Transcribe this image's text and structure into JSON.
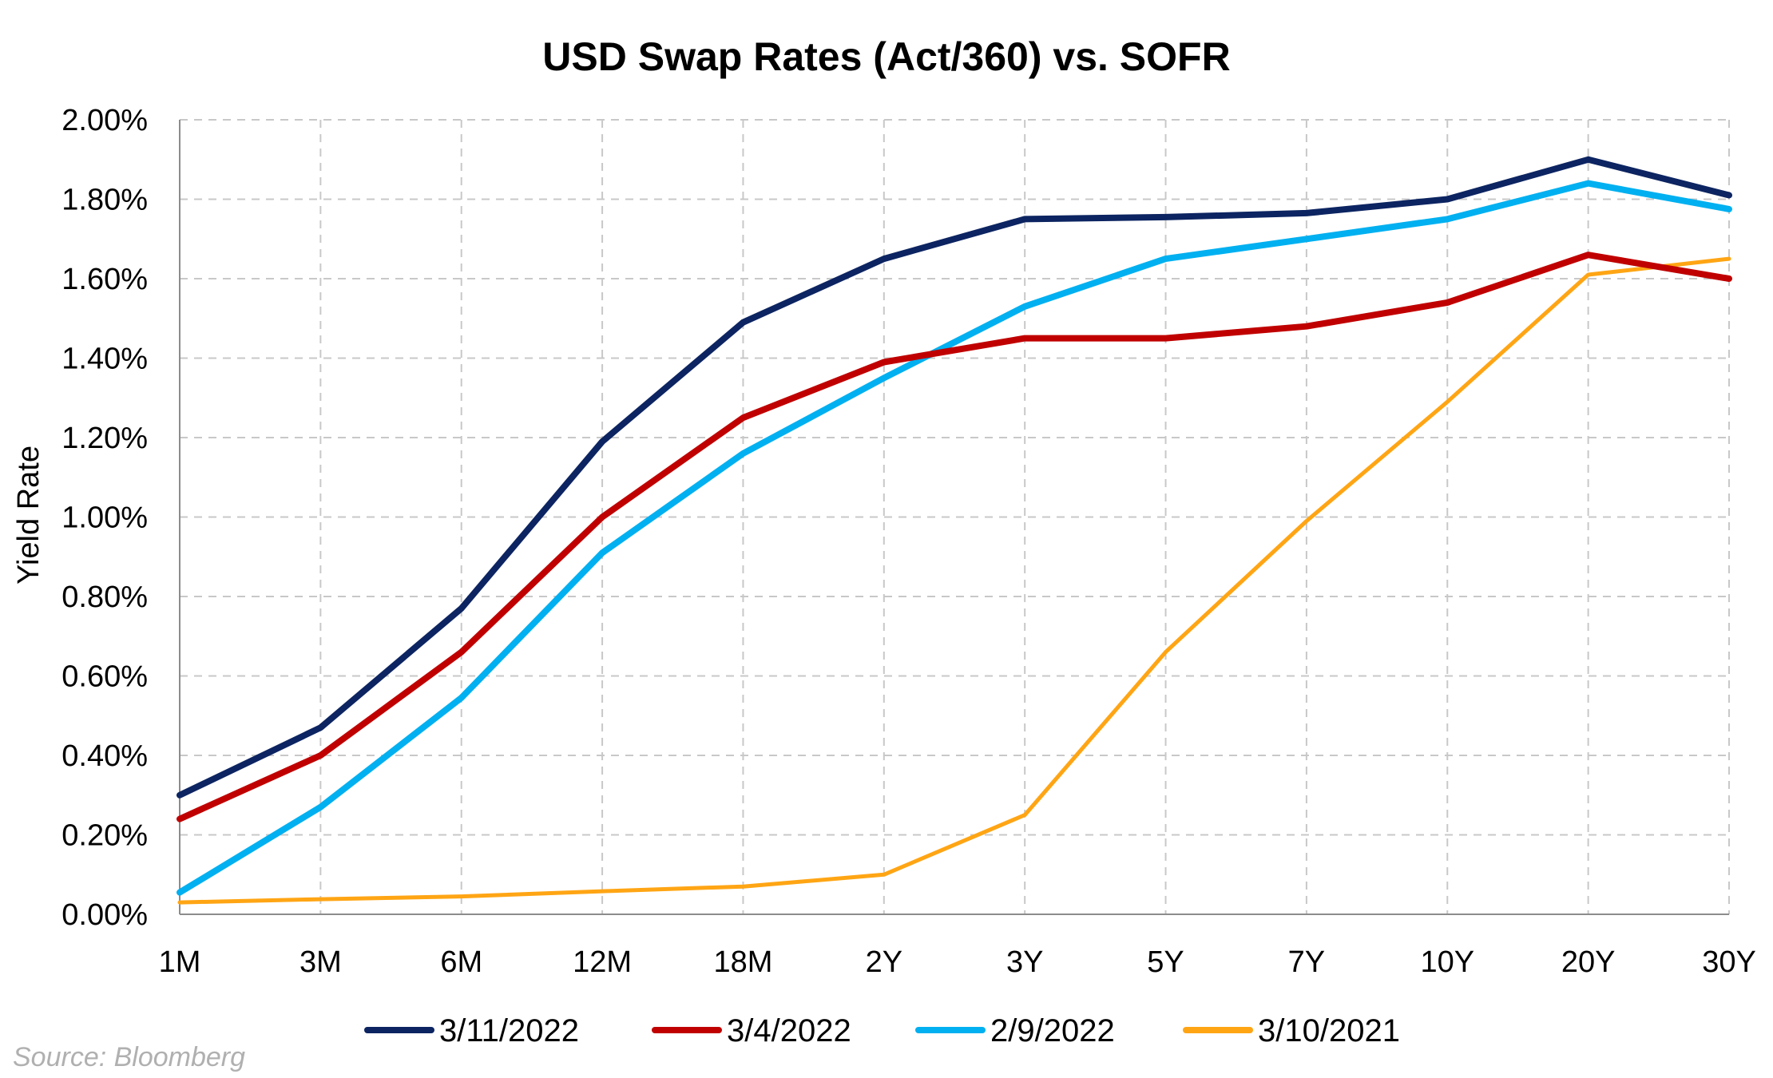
{
  "chart_data": {
    "type": "line",
    "title": "USD Swap Rates (Act/360) vs. SOFR",
    "xlabel": "",
    "ylabel": "Yield Rate",
    "categories": [
      "1M",
      "3M",
      "6M",
      "12M",
      "18M",
      "2Y",
      "3Y",
      "5Y",
      "7Y",
      "10Y",
      "20Y",
      "30Y"
    ],
    "ylim": [
      0,
      2.0
    ],
    "y_ticks": [
      0.0,
      0.2,
      0.4,
      0.6,
      0.8,
      1.0,
      1.2,
      1.4,
      1.6,
      1.8,
      2.0
    ],
    "y_tick_labels": [
      "0.00%",
      "0.20%",
      "0.40%",
      "0.60%",
      "0.80%",
      "1.00%",
      "1.20%",
      "1.40%",
      "1.60%",
      "1.80%",
      "2.00%"
    ],
    "grid": true,
    "legend_position": "bottom",
    "series": [
      {
        "name": "3/11/2022",
        "color": "#0c2461",
        "values": [
          0.3,
          0.47,
          0.77,
          1.19,
          1.49,
          1.65,
          1.75,
          1.755,
          1.765,
          1.8,
          1.9,
          1.81
        ]
      },
      {
        "name": "3/4/2022",
        "color": "#c00000",
        "values": [
          0.24,
          0.4,
          0.66,
          1.0,
          1.25,
          1.39,
          1.45,
          1.45,
          1.48,
          1.54,
          1.66,
          1.6
        ]
      },
      {
        "name": "2/9/2022",
        "color": "#00b0f0",
        "values": [
          0.055,
          0.27,
          0.545,
          0.91,
          1.16,
          1.35,
          1.53,
          1.65,
          1.7,
          1.75,
          1.84,
          1.775
        ]
      },
      {
        "name": "3/10/2021",
        "color": "#ffa514",
        "values": [
          0.03,
          0.038,
          0.045,
          0.058,
          0.07,
          0.1,
          0.25,
          0.66,
          0.99,
          1.29,
          1.61,
          1.65
        ]
      }
    ],
    "source": "Source: Bloomberg"
  }
}
